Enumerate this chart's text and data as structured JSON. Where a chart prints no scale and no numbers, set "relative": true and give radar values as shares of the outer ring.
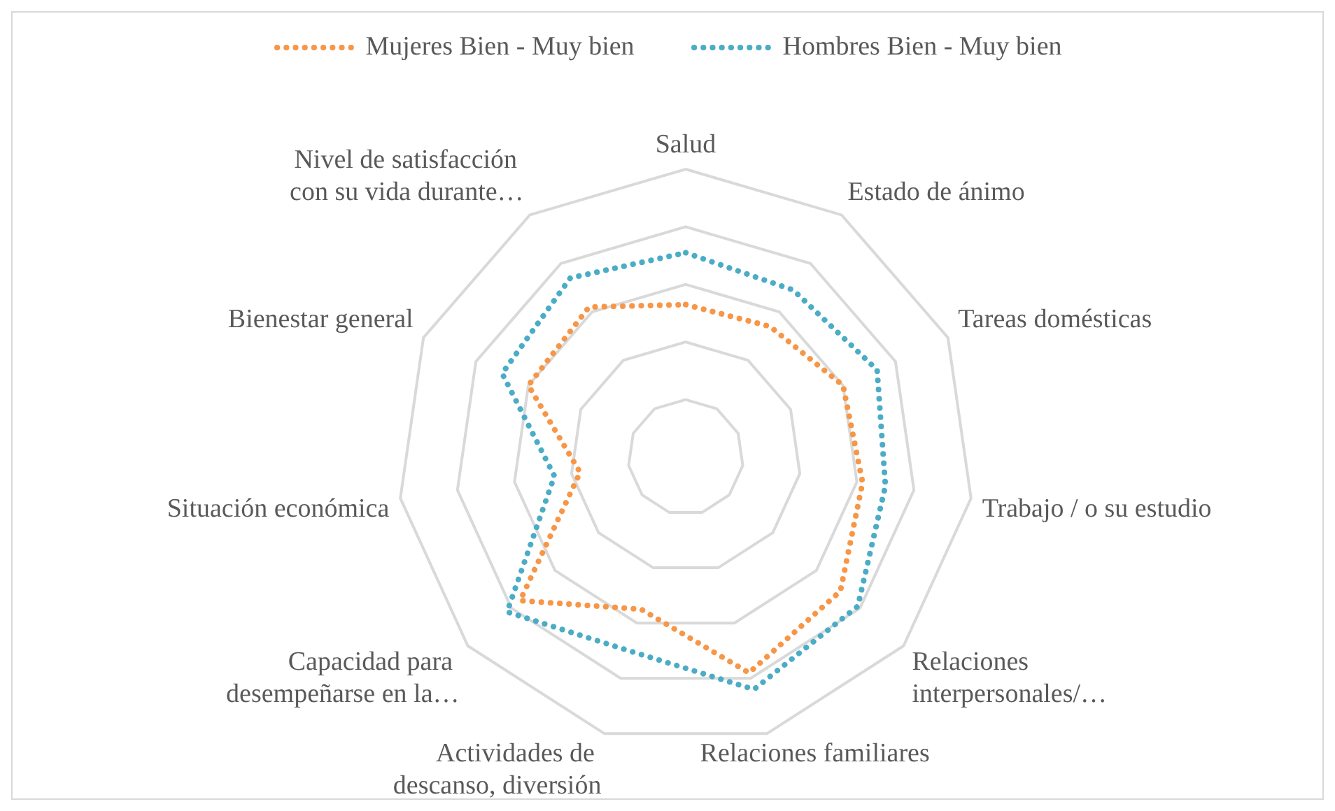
{
  "chart_data": {
    "type": "radar",
    "relative": true,
    "grid": true,
    "legend": "top",
    "line_style": "dotted",
    "marker": "none",
    "categories": [
      "Salud",
      "Estado de ánimo",
      "Tareas domésticas",
      "Trabajo / o su estudio",
      "Relaciones interpersonales/…",
      "Relaciones familiares",
      "Actividades de descanso, diversión",
      "Capacidad para desempeñarse en la…",
      "Situación económica",
      "Bienestar general",
      "Nivel de satisfacción con su vida durante…"
    ],
    "series": [
      {
        "name": "Mujeres Bien - Muy bien",
        "color": "#f79646",
        "values": [
          0.53,
          0.54,
          0.6,
          0.62,
          0.71,
          0.78,
          0.55,
          0.76,
          0.37,
          0.6,
          0.62
        ]
      },
      {
        "name": "Hombres Bien - Muy bien",
        "color": "#4bacc6",
        "values": [
          0.71,
          0.69,
          0.73,
          0.7,
          0.79,
          0.84,
          0.7,
          0.82,
          0.46,
          0.7,
          0.74
        ]
      }
    ]
  }
}
